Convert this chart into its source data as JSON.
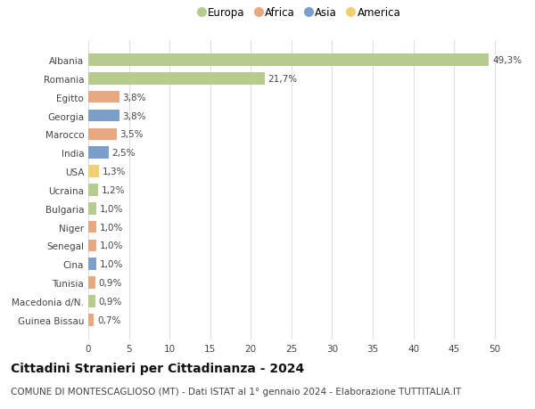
{
  "countries": [
    "Guinea Bissau",
    "Macedonia d/N.",
    "Tunisia",
    "Cina",
    "Senegal",
    "Niger",
    "Bulgaria",
    "Ucraina",
    "USA",
    "India",
    "Marocco",
    "Georgia",
    "Egitto",
    "Romania",
    "Albania"
  ],
  "values": [
    0.7,
    0.9,
    0.9,
    1.0,
    1.0,
    1.0,
    1.0,
    1.2,
    1.3,
    2.5,
    3.5,
    3.8,
    3.8,
    21.7,
    49.3
  ],
  "labels": [
    "0,7%",
    "0,9%",
    "0,9%",
    "1,0%",
    "1,0%",
    "1,0%",
    "1,0%",
    "1,2%",
    "1,3%",
    "2,5%",
    "3,5%",
    "3,8%",
    "3,8%",
    "21,7%",
    "49,3%"
  ],
  "continents": [
    "Africa",
    "Europa",
    "Africa",
    "Asia",
    "Africa",
    "Africa",
    "Europa",
    "Europa",
    "America",
    "Asia",
    "Africa",
    "Asia",
    "Africa",
    "Europa",
    "Europa"
  ],
  "continent_colors": {
    "Europa": "#b5cc8e",
    "Africa": "#e8a882",
    "Asia": "#7b9fc8",
    "America": "#f0d070"
  },
  "legend_order": [
    "Europa",
    "Africa",
    "Asia",
    "America"
  ],
  "title": "Cittadini Stranieri per Cittadinanza - 2024",
  "subtitle": "COMUNE DI MONTESCAGLIOSO (MT) - Dati ISTAT al 1° gennaio 2024 - Elaborazione TUTTITALIA.IT",
  "xlim": [
    0,
    52
  ],
  "xticks": [
    0,
    5,
    10,
    15,
    20,
    25,
    30,
    35,
    40,
    45,
    50
  ],
  "background_color": "#ffffff",
  "grid_color": "#e0e0e0",
  "bar_height": 0.65,
  "title_fontsize": 10,
  "subtitle_fontsize": 7.5,
  "label_fontsize": 7.5,
  "tick_fontsize": 7.5,
  "legend_fontsize": 8.5,
  "ytick_fontsize": 7.5
}
